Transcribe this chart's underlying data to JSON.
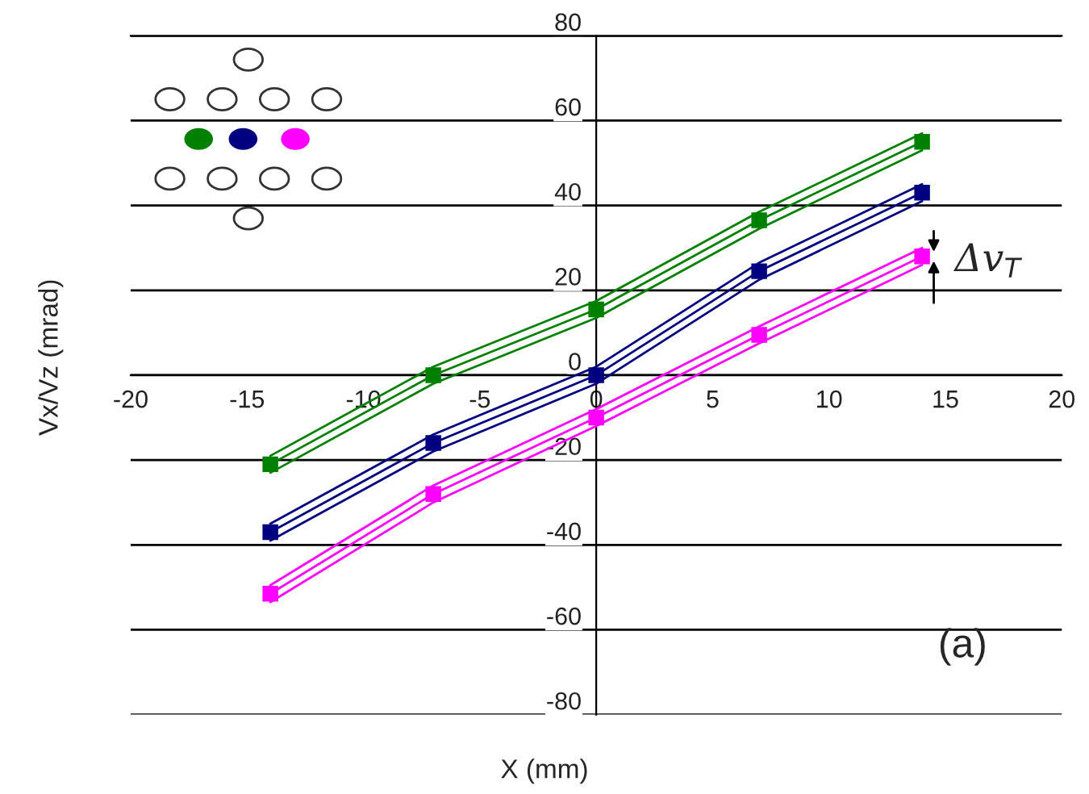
{
  "chart_data": {
    "type": "line",
    "xlabel": "X (mm)",
    "ylabel": "Vx/Vz (mrad)",
    "x": [
      -14,
      -7,
      0,
      7,
      14
    ],
    "series": [
      {
        "color": "#008000",
        "values": [
          -21,
          0,
          15.5,
          36.5,
          55
        ]
      },
      {
        "color": "#008000",
        "values": [
          -23,
          -2,
          13.5,
          34.5,
          53
        ],
        "marker": "none"
      },
      {
        "color": "#008000",
        "values": [
          -19,
          2,
          17.5,
          38.5,
          57
        ],
        "marker": "none"
      },
      {
        "color": "#000080",
        "values": [
          -37,
          -16,
          0,
          24.5,
          43
        ]
      },
      {
        "color": "#000080",
        "values": [
          -39,
          -18,
          -2,
          22.5,
          41
        ],
        "marker": "none"
      },
      {
        "color": "#000080",
        "values": [
          -35,
          -14,
          2,
          26.5,
          45
        ],
        "marker": "none"
      },
      {
        "color": "#ff00ff",
        "values": [
          -51.5,
          -28,
          -10,
          9.5,
          28
        ]
      },
      {
        "color": "#ff00ff",
        "values": [
          -53.5,
          -30,
          -12,
          7.5,
          26
        ],
        "marker": "none"
      },
      {
        "color": "#ff00ff",
        "values": [
          -49.5,
          -26,
          -8,
          11.5,
          30
        ],
        "marker": "none"
      }
    ],
    "xlim": [
      -20,
      20
    ],
    "ylim": [
      -80,
      80
    ],
    "xticks": [
      -20,
      -15,
      -10,
      -5,
      0,
      5,
      10,
      15,
      20
    ],
    "yticks": [
      -80,
      -60,
      -40,
      -20,
      0,
      20,
      40,
      60,
      80
    ],
    "grid": "y",
    "marker": "square",
    "line_style": "solid",
    "legend": false,
    "annotations": [
      {
        "text": "Δv$_{T}$",
        "x": 14.5,
        "y": 28
      },
      "(a)"
    ]
  }
}
